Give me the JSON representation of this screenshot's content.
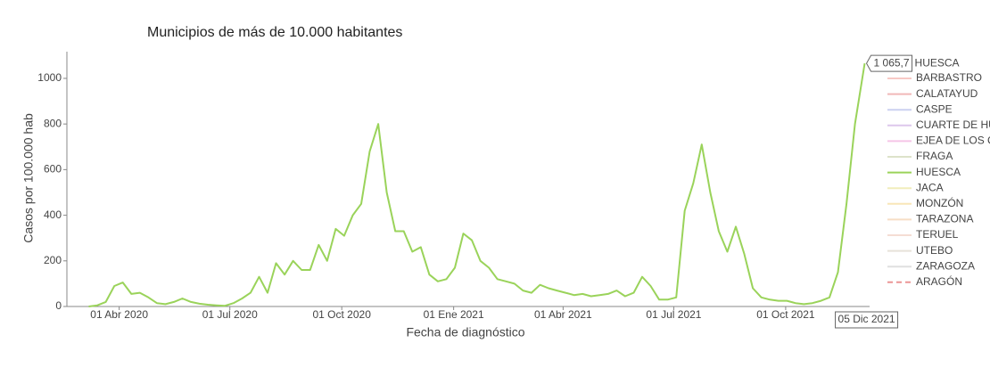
{
  "chart_data": {
    "type": "line",
    "title": "Municipios de más de 10.000 habitantes",
    "xlabel": "Fecha de diagnóstico",
    "ylabel": "Casos por 100.000 hab",
    "series": [
      {
        "name": "HUESCA",
        "color": "#9ad35a",
        "x": [
          "2020-03-07",
          "2020-03-14",
          "2020-03-21",
          "2020-03-28",
          "2020-04-04",
          "2020-04-11",
          "2020-04-18",
          "2020-04-25",
          "2020-05-02",
          "2020-05-09",
          "2020-05-16",
          "2020-05-23",
          "2020-05-30",
          "2020-06-06",
          "2020-06-13",
          "2020-06-20",
          "2020-06-27",
          "2020-07-04",
          "2020-07-11",
          "2020-07-18",
          "2020-07-25",
          "2020-08-01",
          "2020-08-08",
          "2020-08-15",
          "2020-08-22",
          "2020-08-29",
          "2020-09-05",
          "2020-09-12",
          "2020-09-19",
          "2020-09-26",
          "2020-10-03",
          "2020-10-10",
          "2020-10-17",
          "2020-10-24",
          "2020-10-31",
          "2020-11-07",
          "2020-11-14",
          "2020-11-21",
          "2020-11-28",
          "2020-12-05",
          "2020-12-12",
          "2020-12-19",
          "2020-12-26",
          "2021-01-02",
          "2021-01-09",
          "2021-01-16",
          "2021-01-23",
          "2021-01-30",
          "2021-02-06",
          "2021-02-13",
          "2021-02-20",
          "2021-02-27",
          "2021-03-06",
          "2021-03-13",
          "2021-03-20",
          "2021-03-27",
          "2021-04-03",
          "2021-04-10",
          "2021-04-17",
          "2021-04-24",
          "2021-05-01",
          "2021-05-08",
          "2021-05-15",
          "2021-05-22",
          "2021-05-29",
          "2021-06-05",
          "2021-06-12",
          "2021-06-19",
          "2021-06-26",
          "2021-07-03",
          "2021-07-10",
          "2021-07-17",
          "2021-07-24",
          "2021-07-31",
          "2021-08-07",
          "2021-08-14",
          "2021-08-21",
          "2021-08-28",
          "2021-09-04",
          "2021-09-11",
          "2021-09-18",
          "2021-09-25",
          "2021-10-02",
          "2021-10-09",
          "2021-10-16",
          "2021-10-23",
          "2021-10-30",
          "2021-11-06",
          "2021-11-13",
          "2021-11-20",
          "2021-11-27",
          "2021-12-05"
        ],
        "values": [
          0,
          5,
          20,
          90,
          105,
          55,
          60,
          40,
          15,
          10,
          20,
          35,
          20,
          12,
          8,
          5,
          3,
          15,
          35,
          60,
          130,
          60,
          190,
          140,
          200,
          160,
          160,
          270,
          200,
          340,
          310,
          400,
          450,
          680,
          800,
          500,
          330,
          330,
          240,
          260,
          140,
          110,
          120,
          170,
          320,
          290,
          200,
          170,
          120,
          110,
          100,
          70,
          60,
          95,
          80,
          70,
          60,
          50,
          55,
          45,
          50,
          55,
          70,
          45,
          60,
          130,
          90,
          30,
          30,
          40,
          420,
          540,
          710,
          500,
          330,
          240,
          350,
          230,
          80,
          40,
          30,
          25,
          25,
          15,
          10,
          15,
          25,
          40,
          150,
          450,
          800,
          1065.7
        ]
      }
    ],
    "xlim": [
      "2020-02-18",
      "2021-12-09"
    ],
    "xticks": [
      {
        "value": "2020-04-01",
        "label": "01 Abr 2020"
      },
      {
        "value": "2020-07-01",
        "label": "01 Jul 2020"
      },
      {
        "value": "2020-10-01",
        "label": "01 Oct 2020"
      },
      {
        "value": "2021-01-01",
        "label": "01 Ene 2021"
      },
      {
        "value": "2021-04-01",
        "label": "01 Abr 2021"
      },
      {
        "value": "2021-07-01",
        "label": "01 Jul 2021"
      },
      {
        "value": "2021-10-01",
        "label": "01 Oct 2021"
      }
    ],
    "ylim": [
      0,
      1117
    ],
    "yticks": [
      0,
      200,
      400,
      600,
      800,
      1000
    ],
    "grid": false,
    "hover": {
      "x": "2021-12-05",
      "x_label": "05 Dic 2021",
      "value": 1065.7,
      "label": "1 065,7"
    },
    "legend": [
      {
        "name": "BARBASTRO",
        "color": "#f4a6a0"
      },
      {
        "name": "CALATAYUD",
        "color": "#e88a8a"
      },
      {
        "name": "CASPE",
        "color": "#aab4e8"
      },
      {
        "name": "CUARTE DE HU",
        "color": "#c7a3e0"
      },
      {
        "name": "EJEA DE LOS C",
        "color": "#f0a0d8"
      },
      {
        "name": "FRAGA",
        "color": "#c8d0a8"
      },
      {
        "name": "HUESCA",
        "color": "#9ad35a"
      },
      {
        "name": "JACA",
        "color": "#e8e290"
      },
      {
        "name": "MONZÓN",
        "color": "#f5d68a"
      },
      {
        "name": "TARAZONA",
        "color": "#f3c9a0"
      },
      {
        "name": "TERUEL",
        "color": "#f0c8b8"
      },
      {
        "name": "UTEBO",
        "color": "#d8d0c0"
      },
      {
        "name": "ZARAGOZA",
        "color": "#cccccc"
      },
      {
        "name": "ARAGÓN",
        "color": "#e05050",
        "dash": true
      }
    ],
    "legend_active": 6
  }
}
